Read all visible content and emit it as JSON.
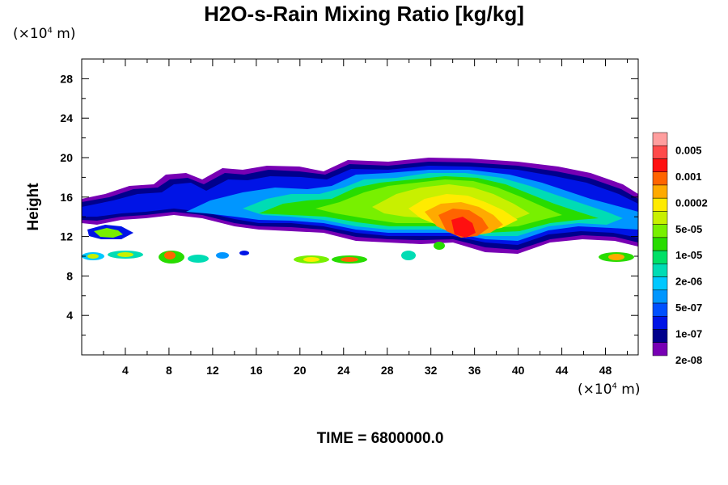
{
  "title": "H2O-s-Rain Mixing Ratio [kg/kg]",
  "y_unit_prefix": "(×10",
  "y_unit_exp": "4",
  "y_unit_suffix": "m)",
  "x_unit_prefix": "(×10",
  "x_unit_exp": "4",
  "x_unit_suffix": "m)",
  "ylabel": "Height",
  "time_label": "TIME = 6800000.0",
  "chart_data": {
    "type": "heatmap",
    "title": "H2O-s-Rain Mixing Ratio [kg/kg]",
    "xlabel": "",
    "ylabel": "Height",
    "xlim": [
      0,
      51
    ],
    "ylim": [
      0,
      30
    ],
    "x_ticks": [
      4,
      8,
      12,
      16,
      20,
      24,
      28,
      32,
      36,
      40,
      44,
      48
    ],
    "y_ticks": [
      4,
      8,
      12,
      16,
      20,
      24,
      28
    ],
    "colorbar": {
      "labels": [
        "0.005",
        "0.001",
        "0.0002",
        "5e-05",
        "1e-05",
        "2e-06",
        "5e-07",
        "1e-07",
        "2e-08"
      ],
      "colors_top_to_bottom": [
        "#ff9e9e",
        "#ff4a4a",
        "#ff1010",
        "#ff6400",
        "#ffaa00",
        "#ffeb00",
        "#c8f000",
        "#78f000",
        "#28dc00",
        "#00e066",
        "#00dcb4",
        "#00c8ff",
        "#0096ff",
        "#0050ff",
        "#0014e6",
        "#00008c",
        "#7800b4"
      ]
    },
    "regions": [
      {
        "name": "main-band",
        "x_range": [
          0,
          51
        ],
        "y_range": [
          10.5,
          20
        ]
      },
      {
        "name": "core-max",
        "x_center": 34.5,
        "y_center": 13,
        "level": "0.001"
      },
      {
        "name": "lower-patches",
        "x_range": [
          0,
          51
        ],
        "y_range": [
          9.5,
          11
        ]
      }
    ]
  }
}
